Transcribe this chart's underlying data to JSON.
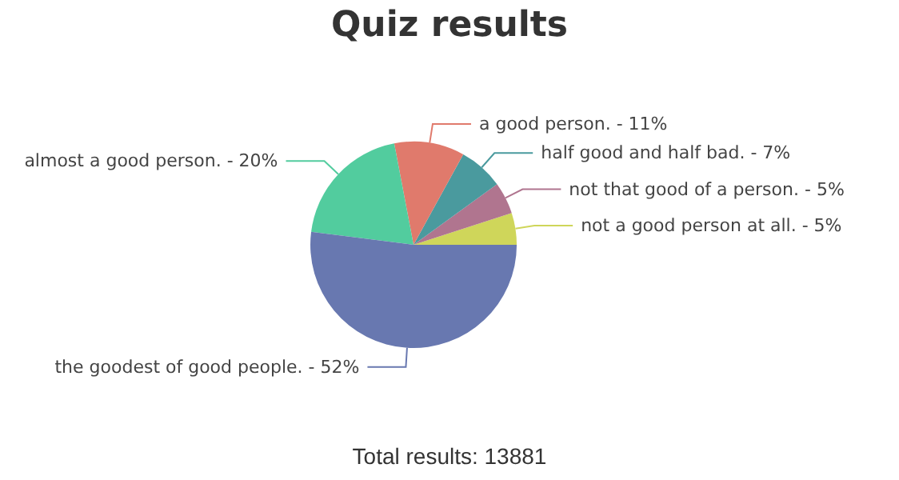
{
  "chart_data": {
    "type": "pie",
    "title": "Quiz results",
    "categories": [
      "not a good person at all. -",
      "not that good of a person. -",
      "half good and half bad. -",
      "a good person. -",
      "almost a good person. -",
      "the goodest of good people. -"
    ],
    "values": [
      5,
      5,
      7,
      11,
      20,
      52
    ],
    "colors": [
      "#cfd65a",
      "#b0758f",
      "#4a9a9e",
      "#e07a6c",
      "#52cc9e",
      "#6878b0"
    ],
    "value_labels": [
      "5%",
      "5%",
      "7%",
      "11%",
      "20%",
      "52%"
    ],
    "legend": false,
    "annotations": [
      "Total results: 13881"
    ]
  }
}
